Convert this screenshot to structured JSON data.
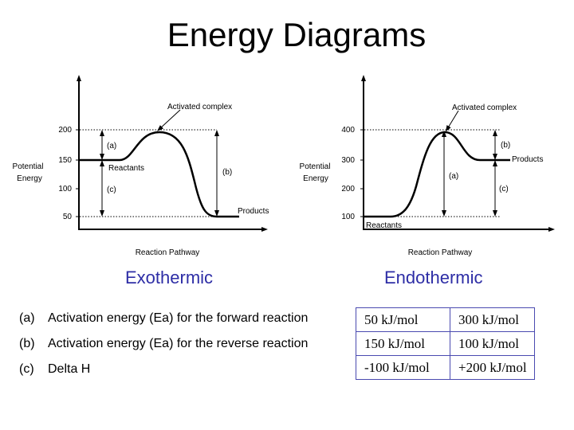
{
  "title": "Energy Diagrams",
  "exothermic": {
    "caption": "Exothermic",
    "y_axis_label": [
      "Potential",
      "Energy"
    ],
    "x_axis_label": "Reaction Pathway",
    "ticks": [
      "200",
      "150",
      "100",
      "50"
    ],
    "labels": {
      "activated_complex": "Activated complex",
      "reactants": "Reactants",
      "products": "Products",
      "a": "(a)",
      "b": "(b)",
      "c": "(c)"
    }
  },
  "endothermic": {
    "caption": "Endothermic",
    "y_axis_label": [
      "Potential",
      "Energy"
    ],
    "x_axis_label": "Reaction Pathway",
    "ticks": [
      "400",
      "300",
      "200",
      "100"
    ],
    "labels": {
      "activated_complex": "Activated complex",
      "reactants": "Reactants",
      "products": "Products",
      "a": "(a)",
      "b": "(b)",
      "c": "(c)"
    }
  },
  "rows": [
    {
      "letter": "(a)",
      "text": "Activation energy (Ea) for the forward reaction",
      "exo": "50 kJ/mol",
      "endo": "300 kJ/mol"
    },
    {
      "letter": "(b)",
      "text": "Activation energy (Ea) for the reverse reaction",
      "exo": "150 kJ/mol",
      "endo": "100 kJ/mol"
    },
    {
      "letter": "(c)",
      "text": "Delta H",
      "exo": "-100 kJ/mol",
      "endo": "+200 kJ/mol"
    }
  ]
}
